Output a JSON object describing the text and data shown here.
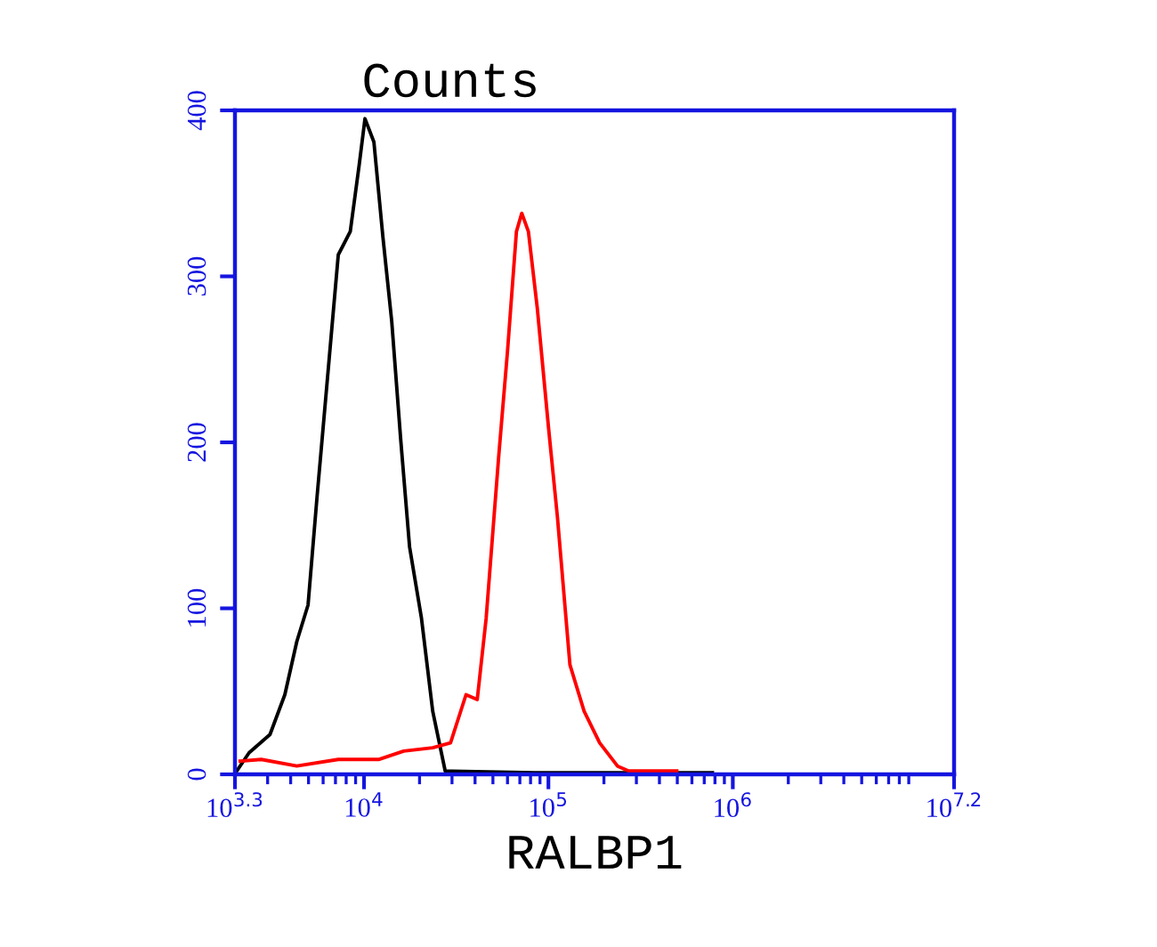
{
  "chart_data": {
    "type": "line",
    "ylabel": "Counts",
    "xlabel": "RALBP1",
    "log": "x",
    "grid": false,
    "legend": false,
    "xlim": [
      1995.26,
      15848932
    ],
    "xticks": [
      {
        "value": 1995.26,
        "label": "10$^{3.3}$"
      },
      {
        "value": 10000,
        "label": "10$^{4}$"
      },
      {
        "value": 100000,
        "label": "10$^{5}$"
      },
      {
        "value": 1000000,
        "label": "10$^{6}$"
      },
      {
        "value": 15848932,
        "label": "10$^{7.2}$"
      }
    ],
    "ylim": [
      0,
      400
    ],
    "yticks": [
      0,
      100,
      200,
      300,
      400
    ],
    "series": [
      {
        "color": "#000000",
        "x": [
          2040,
          2380,
          3090,
          3720,
          4320,
          4970,
          5550,
          6490,
          7250,
          8420,
          9410,
          10120,
          11310,
          12650,
          14130,
          15800,
          17660,
          20490,
          23580,
          27550,
          83800,
          775000
        ],
        "values": [
          2,
          13,
          24,
          48,
          80,
          102,
          166,
          252,
          313,
          327,
          367,
          395,
          381,
          324,
          273,
          202,
          137,
          94,
          38,
          2,
          1,
          1
        ]
      },
      {
        "color": "#ff0000",
        "x": [
          2130,
          2770,
          4320,
          7250,
          12090,
          16410,
          23580,
          29450,
          35740,
          41110,
          45950,
          53700,
          60010,
          67070,
          71710,
          77880,
          87000,
          100100,
          111900,
          130800,
          156200,
          189600,
          236800,
          272400,
          496800
        ],
        "values": [
          8,
          9,
          5,
          9,
          9,
          14,
          16,
          19,
          48,
          45,
          94,
          191,
          255,
          327,
          338,
          327,
          281,
          209,
          155,
          66,
          38,
          19,
          5,
          2,
          2
        ]
      }
    ]
  }
}
